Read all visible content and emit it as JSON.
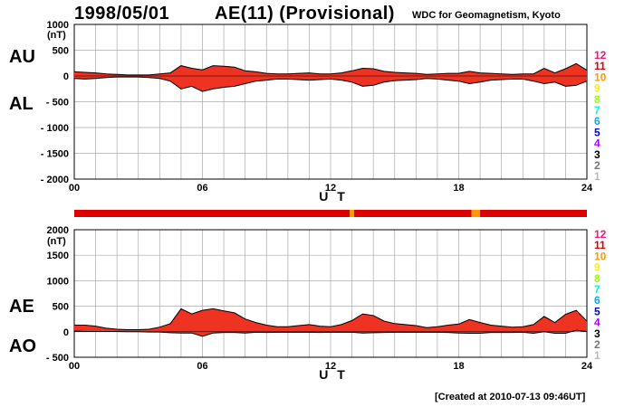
{
  "header": {
    "date": "1998/05/01",
    "title": "AE(11) (Provisional)",
    "source": "WDC for Geomagnetism, Kyoto"
  },
  "footer": {
    "created": "[Created at 2010-07-13 09:46UT]"
  },
  "colors": {
    "fill": "#ee3322",
    "bar": "#ee3322",
    "legend": [
      "#ff1177",
      "#dd0000",
      "#ff9900",
      "#ffee00",
      "#99ff00",
      "#00ffcc",
      "#00aaff",
      "#0000ff",
      "#aa00ff",
      "#000000",
      "#777777",
      "#bbbbbb"
    ]
  },
  "legend": [
    "12",
    "11",
    "10",
    "9",
    "8",
    "7",
    "6",
    "5",
    "4",
    "3",
    "2",
    "1"
  ],
  "chart_data": [
    {
      "type": "area",
      "panel": "AU/AL",
      "labels": {
        "upper": "AU",
        "lower": "AL"
      },
      "unit": "(nT)",
      "xlabel": "U T",
      "xlim": [
        0,
        24
      ],
      "ylim": [
        -2000,
        1000
      ],
      "x_ticks": [
        "00",
        "06",
        "12",
        "18",
        "24"
      ],
      "y_ticks": [
        "1000",
        "500",
        "0",
        "- 500",
        "- 1000",
        "- 1500",
        "- 2000"
      ],
      "grid": true,
      "x": [
        0,
        0.5,
        1,
        1.5,
        2,
        2.5,
        3,
        3.5,
        4,
        4.5,
        5,
        5.5,
        6,
        6.5,
        7,
        7.5,
        8,
        8.5,
        9,
        9.5,
        10,
        10.5,
        11,
        11.5,
        12,
        12.5,
        13,
        13.5,
        14,
        14.5,
        15,
        15.5,
        16,
        16.5,
        17,
        17.5,
        18,
        18.5,
        19,
        19.5,
        20,
        20.5,
        21,
        21.5,
        22,
        22.5,
        23,
        23.5,
        24
      ],
      "series": [
        {
          "name": "AU",
          "values": [
            80,
            70,
            60,
            40,
            30,
            20,
            20,
            20,
            40,
            60,
            200,
            150,
            120,
            200,
            190,
            170,
            100,
            80,
            50,
            40,
            40,
            50,
            60,
            40,
            40,
            60,
            100,
            150,
            140,
            90,
            70,
            60,
            50,
            30,
            40,
            50,
            50,
            90,
            60,
            50,
            40,
            30,
            40,
            40,
            150,
            60,
            140,
            240,
            110
          ]
        },
        {
          "name": "AL",
          "values": [
            -50,
            -60,
            -50,
            -30,
            -20,
            -20,
            -20,
            -30,
            -50,
            -100,
            -250,
            -200,
            -300,
            -250,
            -220,
            -200,
            -150,
            -100,
            -80,
            -60,
            -60,
            -70,
            -80,
            -70,
            -60,
            -80,
            -120,
            -200,
            -180,
            -120,
            -90,
            -80,
            -70,
            -50,
            -60,
            -80,
            -100,
            -150,
            -120,
            -80,
            -70,
            -60,
            -60,
            -100,
            -150,
            -120,
            -200,
            -180,
            -100
          ]
        }
      ]
    },
    {
      "type": "area",
      "panel": "AE/AO",
      "labels": {
        "upper": "AE",
        "lower": "AO"
      },
      "unit": "(nT)",
      "xlabel": "U T",
      "xlim": [
        0,
        24
      ],
      "ylim": [
        -500,
        2000
      ],
      "x_ticks": [
        "00",
        "06",
        "12",
        "18",
        "24"
      ],
      "y_ticks": [
        "2000",
        "1500",
        "1000",
        "500",
        "0",
        "- 500"
      ],
      "grid": true,
      "x": [
        0,
        0.5,
        1,
        1.5,
        2,
        2.5,
        3,
        3.5,
        4,
        4.5,
        5,
        5.5,
        6,
        6.5,
        7,
        7.5,
        8,
        8.5,
        9,
        9.5,
        10,
        10.5,
        11,
        11.5,
        12,
        12.5,
        13,
        13.5,
        14,
        14.5,
        15,
        15.5,
        16,
        16.5,
        17,
        17.5,
        18,
        18.5,
        19,
        19.5,
        20,
        20.5,
        21,
        21.5,
        22,
        22.5,
        23,
        23.5,
        24
      ],
      "series": [
        {
          "name": "AE",
          "values": [
            130,
            130,
            110,
            70,
            50,
            40,
            40,
            50,
            90,
            160,
            450,
            350,
            420,
            450,
            410,
            370,
            250,
            180,
            130,
            100,
            100,
            120,
            140,
            110,
            100,
            140,
            220,
            350,
            320,
            210,
            160,
            140,
            120,
            80,
            100,
            130,
            150,
            240,
            180,
            130,
            110,
            90,
            100,
            140,
            300,
            180,
            340,
            420,
            210
          ]
        },
        {
          "name": "AO",
          "values": [
            15,
            5,
            5,
            5,
            5,
            0,
            0,
            -5,
            -5,
            -20,
            -25,
            -25,
            -90,
            -25,
            -15,
            -15,
            -25,
            -10,
            -15,
            -10,
            -10,
            -10,
            -10,
            -15,
            -10,
            -10,
            -10,
            -25,
            -20,
            -15,
            -10,
            -10,
            -10,
            -10,
            -10,
            -15,
            -25,
            -30,
            -30,
            -15,
            -15,
            -15,
            -10,
            -30,
            0,
            -30,
            -30,
            30,
            5
          ]
        }
      ]
    }
  ],
  "activity_bar": {
    "segments": [
      {
        "from": 0,
        "to": 12.9,
        "level": "11"
      },
      {
        "from": 12.9,
        "to": 13.1,
        "level": "10"
      },
      {
        "from": 13.1,
        "to": 18.6,
        "level": "11"
      },
      {
        "from": 18.6,
        "to": 19.0,
        "level": "10"
      },
      {
        "from": 19.0,
        "to": 24,
        "level": "11"
      }
    ]
  }
}
